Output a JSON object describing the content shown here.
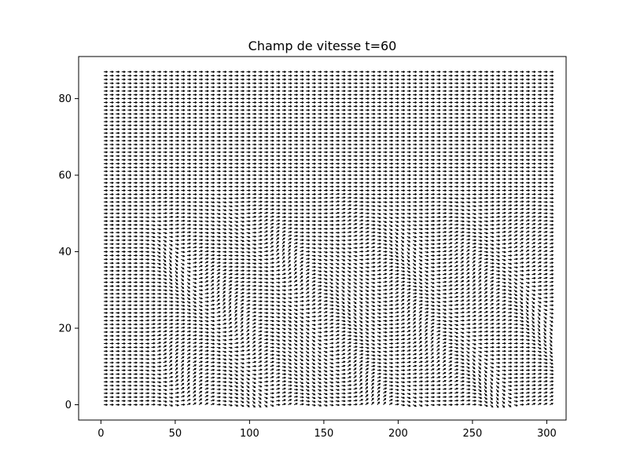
{
  "chart_data": {
    "type": "quiver",
    "title": "Champ de vitesse t=60",
    "xlabel": "",
    "ylabel": "",
    "xlim": [
      -15,
      313
    ],
    "ylim": [
      91,
      -4
    ],
    "y_inverted": true,
    "grid": false,
    "x_ticks": [
      0,
      50,
      100,
      150,
      200,
      250,
      300
    ],
    "y_ticks": [
      0,
      20,
      40,
      60,
      80
    ],
    "field": {
      "x_range": [
        2,
        303
      ],
      "y_range": [
        0,
        87
      ],
      "row_step": 1,
      "col_step": 4,
      "base_vector": [
        1,
        0
      ],
      "disturbed_region": {
        "x": [
          25,
          300
        ],
        "y": [
          0,
          57
        ]
      }
    },
    "arrow_color": "#000000",
    "background_color": "#ffffff"
  }
}
